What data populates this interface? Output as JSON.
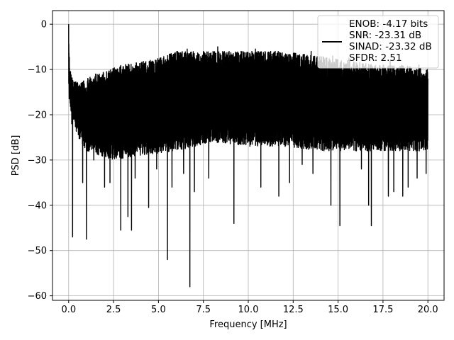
{
  "chart_data": {
    "type": "line",
    "title": "",
    "xlabel": "Frequency [MHz]",
    "ylabel": "PSD [dB]",
    "xlim": [
      -0.9,
      20.9
    ],
    "ylim": [
      -61,
      3
    ],
    "xticks": [
      0.0,
      2.5,
      5.0,
      7.5,
      10.0,
      12.5,
      15.0,
      17.5,
      20.0
    ],
    "xtick_labels": [
      "0.0",
      "2.5",
      "5.0",
      "7.5",
      "10.0",
      "12.5",
      "15.0",
      "17.5",
      "20.0"
    ],
    "yticks": [
      0,
      -10,
      -20,
      -30,
      -40,
      -50,
      -60
    ],
    "ytick_labels": [
      "0",
      "−10",
      "−20",
      "−30",
      "−40",
      "−50",
      "−60"
    ],
    "grid": true,
    "legend_position": "top-right",
    "legend_lines": [
      "ENOB: -4.17 bits",
      "SNR: -23.31 dB",
      "SINAD: -23.32 dB",
      "SFDR: 2.51"
    ],
    "series": [
      {
        "color": "#000000",
        "x_start": 0.0,
        "x_end": 20.0,
        "upper_envelope": [
          [
            0.0,
            0
          ],
          [
            0.05,
            -9
          ],
          [
            0.2,
            -12
          ],
          [
            0.6,
            -13
          ],
          [
            1.5,
            -11
          ],
          [
            3.0,
            -9
          ],
          [
            4.5,
            -8
          ],
          [
            6.0,
            -6
          ],
          [
            8.0,
            -6
          ],
          [
            9.5,
            -6
          ],
          [
            12.0,
            -6
          ],
          [
            14.0,
            -7
          ],
          [
            15.5,
            -8
          ],
          [
            17.0,
            -9
          ],
          [
            18.5,
            -9
          ],
          [
            20.0,
            -10
          ]
        ],
        "lower_envelope": [
          [
            0.0,
            -17
          ],
          [
            0.5,
            -25
          ],
          [
            1.0,
            -28
          ],
          [
            2.5,
            -30
          ],
          [
            4.0,
            -29
          ],
          [
            6.0,
            -28
          ],
          [
            8.0,
            -26
          ],
          [
            10.0,
            -27
          ],
          [
            12.0,
            -27
          ],
          [
            14.0,
            -28
          ],
          [
            16.0,
            -28
          ],
          [
            18.0,
            -28
          ],
          [
            20.0,
            -28
          ]
        ],
        "dips": [
          [
            0.03,
            -16.5
          ],
          [
            0.17,
            -22
          ],
          [
            0.22,
            -47
          ],
          [
            0.5,
            -34
          ],
          [
            0.78,
            -35
          ],
          [
            0.99,
            -47.5
          ],
          [
            1.4,
            -30
          ],
          [
            2.0,
            -36
          ],
          [
            2.3,
            -35
          ],
          [
            2.9,
            -45.5
          ],
          [
            3.3,
            -42.5
          ],
          [
            3.5,
            -45.5
          ],
          [
            3.7,
            -34
          ],
          [
            4.45,
            -40.5
          ],
          [
            4.9,
            -32
          ],
          [
            5.5,
            -52
          ],
          [
            5.75,
            -36
          ],
          [
            6.4,
            -33
          ],
          [
            6.75,
            -58
          ],
          [
            7.0,
            -37
          ],
          [
            7.8,
            -34
          ],
          [
            9.2,
            -44
          ],
          [
            10.7,
            -36
          ],
          [
            11.7,
            -38
          ],
          [
            12.3,
            -35
          ],
          [
            13.0,
            -31
          ],
          [
            13.6,
            -33
          ],
          [
            14.6,
            -40
          ],
          [
            15.1,
            -44.5
          ],
          [
            15.6,
            -32
          ],
          [
            16.3,
            -32
          ],
          [
            16.7,
            -40
          ],
          [
            16.85,
            -44.5
          ],
          [
            17.8,
            -38
          ],
          [
            18.1,
            -37
          ],
          [
            18.6,
            -38
          ],
          [
            18.9,
            -36
          ],
          [
            19.4,
            -34
          ],
          [
            19.9,
            -33
          ]
        ],
        "peaks": [
          [
            0.0,
            0
          ],
          [
            0.5,
            -13
          ],
          [
            1.5,
            -11
          ],
          [
            2.6,
            -10
          ],
          [
            4.2,
            -9
          ],
          [
            5.3,
            -8
          ],
          [
            6.6,
            -5.5
          ],
          [
            7.5,
            -6
          ],
          [
            8.3,
            -5
          ],
          [
            9.6,
            -6
          ],
          [
            10.4,
            -5.5
          ],
          [
            11.5,
            -6
          ],
          [
            12.6,
            -6.5
          ],
          [
            13.5,
            -6
          ],
          [
            14.7,
            -7
          ],
          [
            15.6,
            -7.5
          ],
          [
            16.8,
            -9
          ],
          [
            17.9,
            -8
          ],
          [
            19.5,
            -9
          ]
        ]
      }
    ]
  }
}
